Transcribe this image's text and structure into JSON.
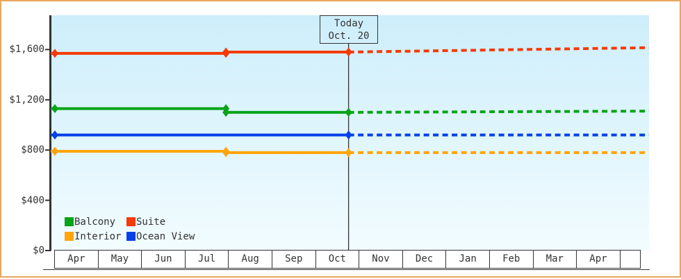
{
  "colors": {
    "frame_border": "#eaa65c",
    "axis": "#333333",
    "text": "#333333",
    "plot_bg_top": "#cdeefb",
    "plot_bg_bottom": "#f2fcff",
    "balcony": "#07a318",
    "suite": "#f53a05",
    "interior": "#ffa40a",
    "ocean_view": "#0540e8"
  },
  "legend": {
    "items": [
      {
        "label": "Balcony",
        "color_key": "balcony"
      },
      {
        "label": "Suite",
        "color_key": "suite"
      },
      {
        "label": "Interior",
        "color_key": "interior"
      },
      {
        "label": "Ocean View",
        "color_key": "ocean_view"
      }
    ]
  },
  "chart_data": {
    "type": "line",
    "title": "",
    "x_axis": {
      "unit": "month",
      "labels": [
        "Apr",
        "May",
        "Jun",
        "Jul",
        "Aug",
        "Sep",
        "Oct",
        "Nov",
        "Dec",
        "Jan",
        "Feb",
        "Mar",
        "Apr",
        ""
      ]
    },
    "y_axis": {
      "tick_labels": [
        "$1,600",
        "$1,200",
        "$800",
        "$400",
        "$0"
      ],
      "tick_values": [
        1600,
        1200,
        800,
        400,
        0
      ],
      "ylim": [
        0,
        1870
      ]
    },
    "today": {
      "label_line1": "Today",
      "label_line2": "Oct. 20",
      "month_index": 6.645
    },
    "series": [
      {
        "name": "Suite",
        "color_key": "suite",
        "history": [
          {
            "month": 0,
            "price": 1570
          },
          {
            "month": 3.87,
            "price": 1570
          },
          {
            "month": 3.87,
            "price": 1580
          },
          {
            "month": 6.645,
            "price": 1580
          }
        ],
        "forecast_end": {
          "month": 13.44,
          "price": 1615
        }
      },
      {
        "name": "Balcony",
        "color_key": "balcony",
        "history": [
          {
            "month": 0,
            "price": 1130
          },
          {
            "month": 3.87,
            "price": 1130
          },
          {
            "month": 3.87,
            "price": 1100
          },
          {
            "month": 6.645,
            "price": 1100
          }
        ],
        "forecast_end": {
          "month": 13.44,
          "price": 1110
        }
      },
      {
        "name": "Ocean View",
        "color_key": "ocean_view",
        "history": [
          {
            "month": 0,
            "price": 920
          },
          {
            "month": 6.645,
            "price": 920
          }
        ],
        "forecast_end": {
          "month": 13.44,
          "price": 920
        }
      },
      {
        "name": "Interior",
        "color_key": "interior",
        "history": [
          {
            "month": 0,
            "price": 790
          },
          {
            "month": 3.87,
            "price": 790
          },
          {
            "month": 3.87,
            "price": 780
          },
          {
            "month": 6.645,
            "price": 780
          }
        ],
        "forecast_end": {
          "month": 13.44,
          "price": 780
        }
      }
    ]
  }
}
